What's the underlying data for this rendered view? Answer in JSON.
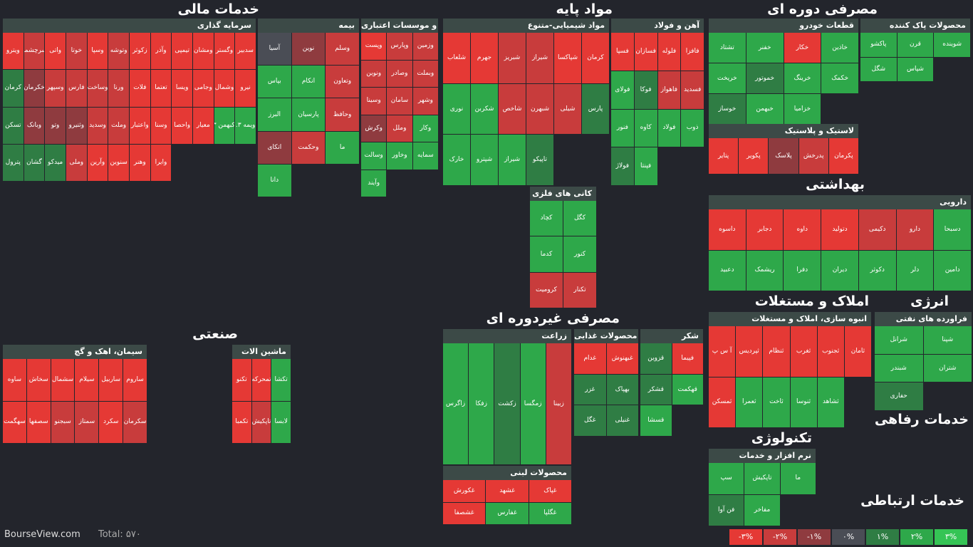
{
  "sectors": [
    {
      "title": "خدمات مالی"
    },
    {
      "title": "مواد پایه"
    },
    {
      "title": "مصرفی دوره ای"
    },
    {
      "title": "صنعتی"
    },
    {
      "title": "مصرفی غیردوره ای"
    },
    {
      "title": "بهداشتی"
    },
    {
      "title": "املاک و مستغلات"
    },
    {
      "title": "انرژی"
    },
    {
      "title": "خدمات رفاهی"
    },
    {
      "title": "تکنولوژی"
    },
    {
      "title": "خدمات ارتباطی"
    }
  ],
  "groups": [
    {
      "name": "سرمایه گذاری",
      "tiles": [
        [
          "ویترو",
          0
        ],
        [
          "سرچشمه",
          1
        ],
        [
          "واتی",
          0
        ],
        [
          "خوتا",
          1
        ],
        [
          "وسپا",
          0
        ],
        [
          "وتوشه",
          1
        ],
        [
          "زکوثر",
          0
        ],
        [
          "وآذر",
          0
        ],
        [
          "تیمپی",
          0
        ],
        [
          "ومشان",
          0
        ],
        [
          "وگستر",
          0
        ],
        [
          "سدبیر",
          0
        ],
        [
          "کرمان",
          4
        ],
        [
          "خکرمان",
          2
        ],
        [
          "وسپهر",
          1
        ],
        [
          "فارس",
          1
        ],
        [
          "وساخت",
          1
        ],
        [
          "ورنا",
          1
        ],
        [
          "فلات",
          0
        ],
        [
          "تعتما",
          0
        ],
        [
          "ویسا",
          0
        ],
        [
          "وجامی",
          0
        ],
        [
          "وشمال",
          0
        ],
        [
          "نیرو",
          0
        ],
        [
          "تسکن",
          4
        ],
        [
          "وبانک",
          2
        ],
        [
          "وتو",
          2
        ],
        [
          "وثنیرو",
          2
        ],
        [
          "وسدید",
          1
        ],
        [
          "وملت",
          1
        ],
        [
          "واعتبار",
          0
        ],
        [
          "وسنا",
          0
        ],
        [
          "واحصا",
          0
        ],
        [
          "معیار",
          0
        ],
        [
          "وکبهمن ۱.۳٪",
          5
        ],
        [
          "ویمه ۱.۳٪",
          5
        ],
        [
          "پترول",
          4
        ],
        [
          "گشان",
          4
        ],
        [
          "میدکو",
          4
        ],
        [
          "وملی",
          1
        ],
        [
          "وآرین",
          0
        ],
        [
          "سنوین",
          0
        ],
        [
          "وهنر",
          0
        ],
        [
          "وایرا",
          0
        ]
      ]
    },
    {
      "name": "بیمه",
      "tiles": [
        [
          "آسیا",
          3
        ],
        [
          "نوین",
          2
        ],
        [
          "وسلم",
          1
        ],
        [
          "بپاس",
          5
        ],
        [
          "انکام",
          5
        ],
        [
          "وتعاون",
          1
        ],
        [
          "البرز",
          5
        ],
        [
          "پارسیان",
          5
        ],
        [
          "وحافظ",
          1
        ],
        [
          "اتکای",
          2
        ],
        [
          "وحکمت",
          1
        ],
        [
          "ما",
          5
        ],
        [
          "دانا",
          5
        ]
      ]
    },
    {
      "name": "بانک ها و موسسات اعتباری",
      "tiles": [
        [
          "وپست",
          0
        ],
        [
          "وپارس",
          1
        ],
        [
          "وزمین",
          1
        ],
        [
          "ونوین",
          1
        ],
        [
          "وصادر",
          1
        ],
        [
          "وبملت",
          1
        ],
        [
          "وسینا",
          1
        ],
        [
          "سامان",
          1
        ],
        [
          "وشهر",
          1
        ],
        [
          "وکرش",
          2
        ],
        [
          "وملل",
          1
        ],
        [
          "وکار",
          5
        ],
        [
          "وسالت",
          5
        ],
        [
          "وخاور",
          5
        ],
        [
          "سمایه",
          5
        ],
        [
          "وآیند",
          5
        ]
      ]
    },
    {
      "name": "مواد شیمیایی-متنوع",
      "tiles": [
        [
          "شلعاب",
          0
        ],
        [
          "جهرم",
          0
        ],
        [
          "شبریز",
          1
        ],
        [
          "شیراز",
          1
        ],
        [
          "شپاکسا",
          0
        ],
        [
          "کرمان",
          0
        ],
        [
          "نوری",
          5
        ],
        [
          "شکربن",
          5
        ],
        [
          "شاخص",
          1
        ],
        [
          "شبهرن",
          1
        ],
        [
          "شیلی",
          1
        ],
        [
          "پارس",
          4
        ],
        [
          "خارک",
          5
        ],
        [
          "شپترو",
          5
        ],
        [
          "شیراز",
          5
        ],
        [
          "تاپیکو",
          4
        ]
      ]
    },
    {
      "name": "آهن و فولاد",
      "tiles": [
        [
          "فسپا",
          0
        ],
        [
          "فسازان",
          0
        ],
        [
          "فلوله",
          0
        ],
        [
          "فافزا",
          0
        ],
        [
          "فولای",
          5
        ],
        [
          "فوکا",
          4
        ],
        [
          "فاهواز",
          1
        ],
        [
          "فسدید",
          1
        ],
        [
          "فنور",
          5
        ],
        [
          "کاوه",
          5
        ],
        [
          "فولاد",
          5
        ],
        [
          "ذوب",
          5
        ],
        [
          "فولاژ",
          4
        ],
        [
          "فپنتا",
          5
        ]
      ]
    },
    {
      "name": "قطعات خودرو",
      "tiles": [
        [
          "تشتاد",
          5
        ],
        [
          "خفنر",
          5
        ],
        [
          "خکار",
          0
        ],
        [
          "خاذین",
          5
        ],
        [
          "خریخت",
          5
        ],
        [
          "خموتور",
          4
        ],
        [
          "خرینگ",
          5
        ],
        [
          "خکمک",
          5
        ],
        [
          "خوساز",
          4
        ],
        [
          "خبهمن",
          5
        ],
        [
          "خزامیا",
          5
        ]
      ]
    },
    {
      "name": "محصولات پاک کننده",
      "tiles": [
        [
          "پاکشو",
          5
        ],
        [
          "قرن",
          5
        ],
        [
          "شوینده",
          5
        ],
        [
          "شگل",
          5
        ],
        [
          "شپاس",
          5
        ]
      ]
    },
    {
      "name": "لاستیک و پلاستیک",
      "tiles": [
        [
          "پتایر",
          0
        ],
        [
          "پکویر",
          0
        ],
        [
          "پلاسک",
          2
        ],
        [
          "پدرخش",
          1
        ],
        [
          "پکرمان",
          0
        ]
      ]
    },
    {
      "name": "ماشین الات",
      "tiles": [
        [
          "تکنو",
          0
        ],
        [
          "تمحرکه",
          0
        ],
        [
          "تکشا",
          5
        ],
        [
          "تکمبا",
          0
        ],
        [
          "تاپکیش",
          1
        ],
        [
          "لابسا",
          5
        ]
      ]
    },
    {
      "name": "کانی های فلزی",
      "tiles": [
        [
          "کچاد",
          5
        ],
        [
          "کگل",
          5
        ],
        [
          "کدما",
          5
        ],
        [
          "کنور",
          5
        ],
        [
          "کرومیت",
          1
        ],
        [
          "تکنار",
          1
        ]
      ]
    },
    {
      "name": "زراعت",
      "tiles": [
        [
          "زاگرس",
          5
        ],
        [
          "زفکا",
          5
        ],
        [
          "زکشت",
          4
        ],
        [
          "زمگسا",
          5
        ],
        [
          "زبینا",
          1
        ]
      ]
    },
    {
      "name": "شکر",
      "tiles": [
        [
          "قزوین",
          4
        ],
        [
          "فپیما",
          0
        ],
        [
          "قشکر",
          4
        ],
        [
          "قهکمت",
          5
        ],
        [
          "قسشا",
          5
        ]
      ]
    },
    {
      "name": "محصولات لبنی",
      "tiles": [
        [
          "غکورش",
          0
        ],
        [
          "غشهد",
          0
        ],
        [
          "غپاک",
          0
        ],
        [
          "غشصفا",
          0
        ],
        [
          "غفارس",
          5
        ],
        [
          "غگلپا",
          5
        ]
      ]
    },
    {
      "name": "دارویی",
      "tiles": [
        [
          "داسوه",
          0
        ],
        [
          "دجابر",
          0
        ],
        [
          "داوه",
          0
        ],
        [
          "دتولید",
          0
        ],
        [
          "دکیمی",
          1
        ],
        [
          "دارو",
          1
        ],
        [
          "دسبحا",
          5
        ],
        [
          "دعبید",
          5
        ],
        [
          "ریشمک",
          5
        ],
        [
          "دفرا",
          5
        ],
        [
          "دیران",
          5
        ],
        [
          "دکوثر",
          5
        ],
        [
          "دلر",
          5
        ],
        [
          "دامین",
          5
        ]
      ]
    },
    {
      "name": "انبوه سازی، املاک و مستغلات",
      "tiles": [
        [
          "آ س پ",
          0
        ],
        [
          "ثپردیس",
          0
        ],
        [
          "ثنظام",
          0
        ],
        [
          "ثغرب",
          0
        ],
        [
          "ثجنوب",
          0
        ],
        [
          "ثامان",
          0
        ],
        [
          "ثمسکن",
          0
        ],
        [
          "ثعمرا",
          5
        ],
        [
          "ثاخت",
          5
        ],
        [
          "ثنوسا",
          5
        ],
        [
          "ثشاهد",
          5
        ]
      ]
    },
    {
      "name": "فراورده های نفتی",
      "tiles": [
        [
          "شرانل",
          5
        ],
        [
          "شپنا",
          5
        ],
        [
          "شبندر",
          5
        ],
        [
          "شتران",
          5
        ],
        [
          "حفاری",
          4
        ]
      ]
    },
    {
      "name": "نرم افزار و خدمات",
      "tiles": [
        [
          "سپ",
          5
        ],
        [
          "تاپکیش",
          5
        ],
        [
          "ما",
          5
        ],
        [
          "فن آوا",
          4
        ],
        [
          "مفاخر",
          5
        ]
      ]
    },
    {
      "name": "محصولات غذایی",
      "tiles": [
        [
          "غدام",
          0
        ],
        [
          "غبهنوش",
          0
        ],
        [
          "غزر",
          4
        ],
        [
          "بهپاک",
          4
        ],
        [
          "غگل",
          4
        ],
        [
          "غنیلی",
          4
        ]
      ]
    },
    {
      "name": "سیمان، اهک و گچ",
      "tiles": [
        [
          "ساوه",
          0
        ],
        [
          "سخاش",
          0
        ],
        [
          "سشمال",
          0
        ],
        [
          "سیلام",
          0
        ],
        [
          "ساربیل",
          0
        ],
        [
          "ساروم",
          0
        ],
        [
          "سهگمت",
          0
        ],
        [
          "سصفها",
          0
        ],
        [
          "سبجنو",
          1
        ],
        [
          "سمتاز",
          1
        ],
        [
          "سکرد",
          0
        ],
        [
          "سکرمان",
          1
        ]
      ]
    }
  ],
  "footer": {
    "site": "BourseView.com",
    "total": "Total: ۵۷۰"
  },
  "legend": [
    "-۳%",
    "-۲%",
    "-۱%",
    "۰%",
    "۱%",
    "۲%",
    "۳%"
  ],
  "colors": {
    "strong_red": "#e53935",
    "dim_red": "#8f3b3f",
    "neutral": "#4a4d55",
    "dim_green": "#2f7d44",
    "strong_green": "#35c455",
    "background": "#23252c"
  }
}
